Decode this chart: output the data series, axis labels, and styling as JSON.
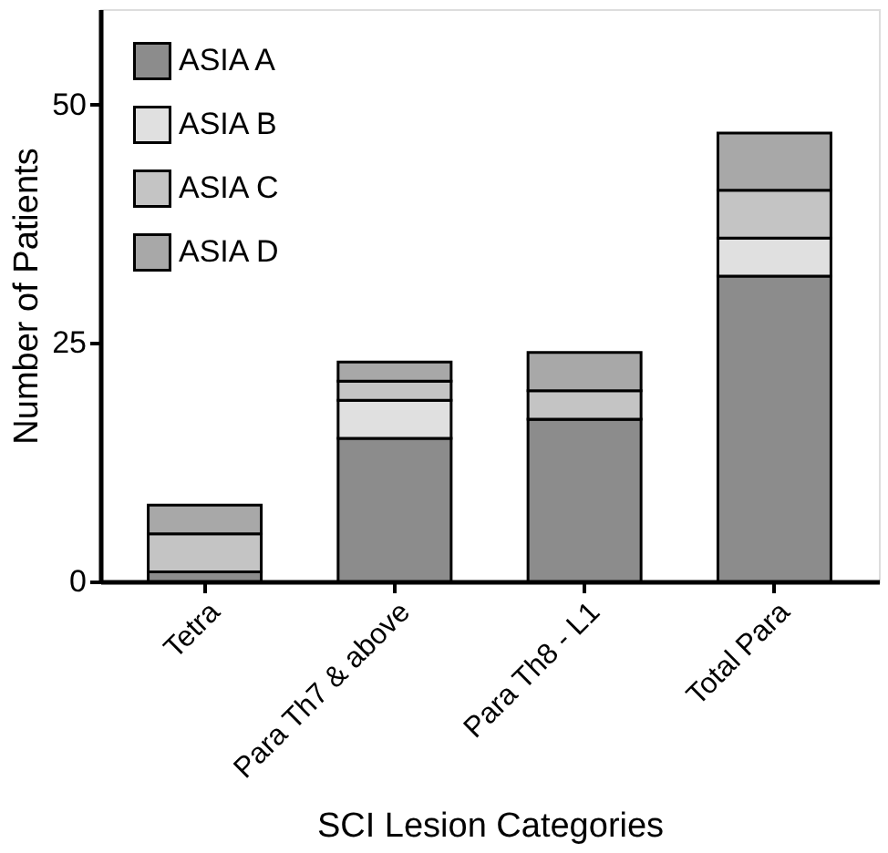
{
  "chart_data": {
    "type": "bar",
    "stacked": true,
    "xlabel": "SCI Lesion Categories",
    "ylabel": "Number of Patients",
    "categories": [
      "Tetra",
      "Para Th7 & above",
      "Para Th8 - L1",
      "Total Para"
    ],
    "series": [
      {
        "name": "ASIA A",
        "color": "#8c8c8c",
        "values": [
          1,
          15,
          17,
          32
        ]
      },
      {
        "name": "ASIA B",
        "color": "#e0e0e0",
        "values": [
          0,
          4,
          0,
          4
        ]
      },
      {
        "name": "ASIA C",
        "color": "#c4c4c4",
        "values": [
          4,
          2,
          3,
          5
        ]
      },
      {
        "name": "ASIA D",
        "color": "#a8a8a8",
        "values": [
          3,
          2,
          4,
          6
        ]
      }
    ],
    "ylim": [
      0,
      60
    ],
    "yticks": [
      0,
      25,
      50
    ],
    "grid": false,
    "legend": "top left"
  }
}
